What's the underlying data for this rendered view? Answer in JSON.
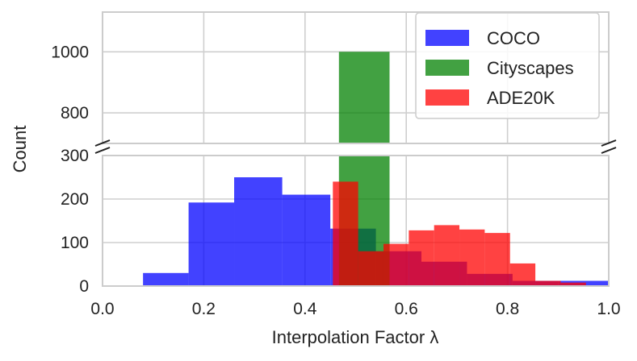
{
  "chart_data": {
    "type": "histogram",
    "xlabel": "Interpolation Factor λ",
    "ylabel": "Count",
    "xlim": [
      0.0,
      1.0
    ],
    "x_ticks": [
      "0.0",
      "0.2",
      "0.4",
      "0.6",
      "0.8",
      "1.0"
    ],
    "y_axis_broken": true,
    "upper_ylim": [
      700,
      1130
    ],
    "upper_y_ticks": [
      "800",
      "1000"
    ],
    "lower_ylim": [
      0,
      300
    ],
    "lower_y_ticks": [
      "0",
      "100",
      "200",
      "300"
    ],
    "grid": true,
    "legend_position": "top-right",
    "series": [
      {
        "name": "COCO",
        "color": "#0000ff",
        "bins": [
          {
            "x0": 0.08,
            "x1": 0.17,
            "count": 30
          },
          {
            "x0": 0.17,
            "x1": 0.26,
            "count": 192
          },
          {
            "x0": 0.26,
            "x1": 0.355,
            "count": 250
          },
          {
            "x0": 0.355,
            "x1": 0.45,
            "count": 210
          },
          {
            "x0": 0.45,
            "x1": 0.54,
            "count": 132
          },
          {
            "x0": 0.54,
            "x1": 0.63,
            "count": 80
          },
          {
            "x0": 0.63,
            "x1": 0.72,
            "count": 56
          },
          {
            "x0": 0.72,
            "x1": 0.81,
            "count": 28
          },
          {
            "x0": 0.81,
            "x1": 0.9,
            "count": 12
          },
          {
            "x0": 0.9,
            "x1": 1.0,
            "count": 12
          }
        ]
      },
      {
        "name": "Cityscapes",
        "color": "#008000",
        "bins": [
          {
            "x0": 0.467,
            "x1": 0.567,
            "count": 1000
          }
        ]
      },
      {
        "name": "ADE20K",
        "color": "#ff0000",
        "bins": [
          {
            "x0": 0.455,
            "x1": 0.505,
            "count": 240
          },
          {
            "x0": 0.505,
            "x1": 0.555,
            "count": 80
          },
          {
            "x0": 0.555,
            "x1": 0.605,
            "count": 97
          },
          {
            "x0": 0.605,
            "x1": 0.655,
            "count": 128
          },
          {
            "x0": 0.655,
            "x1": 0.705,
            "count": 140
          },
          {
            "x0": 0.705,
            "x1": 0.755,
            "count": 130
          },
          {
            "x0": 0.755,
            "x1": 0.805,
            "count": 122
          },
          {
            "x0": 0.805,
            "x1": 0.855,
            "count": 52
          },
          {
            "x0": 0.855,
            "x1": 0.905,
            "count": 12
          },
          {
            "x0": 0.905,
            "x1": 0.955,
            "count": 8
          }
        ]
      }
    ]
  }
}
